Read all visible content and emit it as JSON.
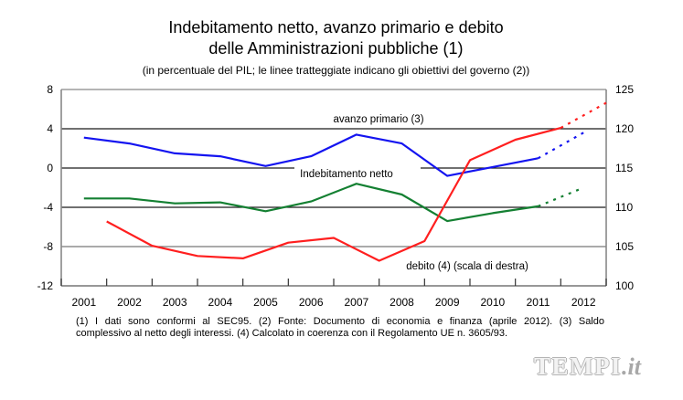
{
  "header": {
    "title_line1": "Indebitamento netto, avanzo primario e debito",
    "title_line2": "delle Amministrazioni pubbliche (1)",
    "subtitle": "(in percentuale del PIL; le linee tratteggiate indicano gli obiettivi del governo (2))"
  },
  "chart_data": {
    "type": "line",
    "title": "Indebitamento netto, avanzo primario e debito delle Amministrazioni pubbliche (1)",
    "subtitle": "(in percentuale del PIL; le linee tratteggiate indicano gli obiettivi del governo (2))",
    "xlabel": "",
    "ylabel": "",
    "categories": [
      "2001",
      "2002",
      "2003",
      "2004",
      "2005",
      "2006",
      "2007",
      "2008",
      "2009",
      "2010",
      "2011",
      "2012"
    ],
    "y_left": {
      "min": -12,
      "max": 8,
      "ticks": [
        "8",
        "4",
        "0",
        "-4",
        "-8",
        "-12"
      ],
      "tick_values": [
        8,
        4,
        0,
        -4,
        -8,
        -12
      ]
    },
    "y_right": {
      "min": 100,
      "max": 125,
      "ticks": [
        "125",
        "120",
        "115",
        "110",
        "105",
        "100"
      ],
      "tick_values": [
        125,
        120,
        115,
        110,
        105,
        100
      ]
    },
    "grid": true,
    "objective_note": "dashed segment 2011-2012 = government objectives",
    "series": [
      {
        "name": "avanzo primario (3)",
        "axis": "left",
        "color": "#1414f0",
        "plotted_at": "mid-year",
        "values": [
          3.1,
          2.5,
          1.5,
          1.2,
          0.2,
          1.2,
          3.4,
          2.5,
          -0.8,
          0.1,
          1.0,
          3.6
        ],
        "dashed_from": "2011"
      },
      {
        "name": "Indebitamento netto",
        "axis": "left",
        "color": "#148032",
        "plotted_at": "mid-year",
        "values": [
          -3.1,
          -3.1,
          -3.6,
          -3.5,
          -4.4,
          -3.4,
          -1.6,
          -2.7,
          -5.4,
          -4.6,
          -3.9,
          -2.0
        ],
        "dashed_from": "2011"
      },
      {
        "name": "debito (4) (scala di destra)",
        "axis": "right",
        "color": "#ff1f1f",
        "plotted_at": "year-end",
        "values": [
          108.2,
          105.1,
          103.8,
          103.5,
          105.5,
          106.1,
          103.2,
          105.7,
          116.0,
          118.6,
          120.1,
          123.3
        ],
        "dashed_from": "2011"
      }
    ],
    "annotations": [
      {
        "text": "avanzo primario (3)"
      },
      {
        "text": "Indebitamento netto"
      },
      {
        "text": "debito (4) (scala di destra)"
      }
    ]
  },
  "footnotes": {
    "line1": "(1) I dati sono conformi al SEC95. (2) Fonte: Documento di economia e finanza (aprile 2012). (3) Saldo",
    "line2": "complessivo al netto degli interessi. (4) Calcolato in coerenza con il Regolamento UE n. 3605/93."
  },
  "watermark": {
    "main": "TEMPI",
    "suffix": ".it"
  }
}
